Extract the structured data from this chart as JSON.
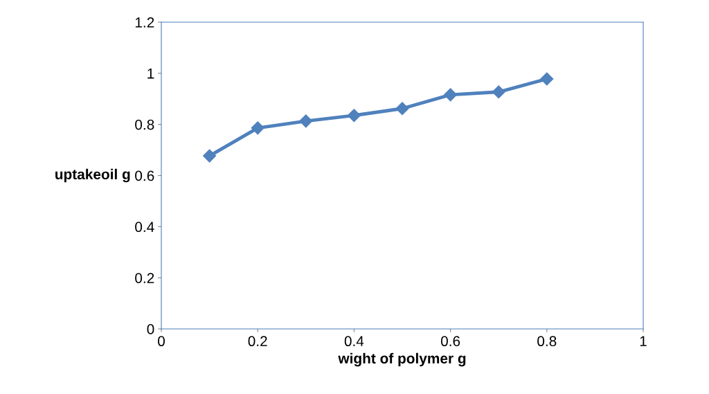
{
  "chart_data": {
    "type": "line",
    "xlabel": "wight of polymer g",
    "ylabel": "uptakeoil g",
    "x": [
      0.1,
      0.2,
      0.3,
      0.4,
      0.5,
      0.6,
      0.7,
      0.8
    ],
    "series": [
      {
        "color": "#4f81bd",
        "values": [
          0.677,
          0.786,
          0.813,
          0.835,
          0.862,
          0.916,
          0.927,
          0.978
        ]
      }
    ],
    "xlim": [
      0,
      1
    ],
    "xticks": [
      0,
      0.2,
      0.4,
      0.6,
      0.8,
      1
    ],
    "ylim": [
      0,
      1.2
    ],
    "yticks": [
      0,
      0.2,
      0.4,
      0.6,
      0.8,
      1,
      1.2
    ],
    "grid": false,
    "legend": false,
    "marker": "diamond",
    "line_style": "solid"
  }
}
